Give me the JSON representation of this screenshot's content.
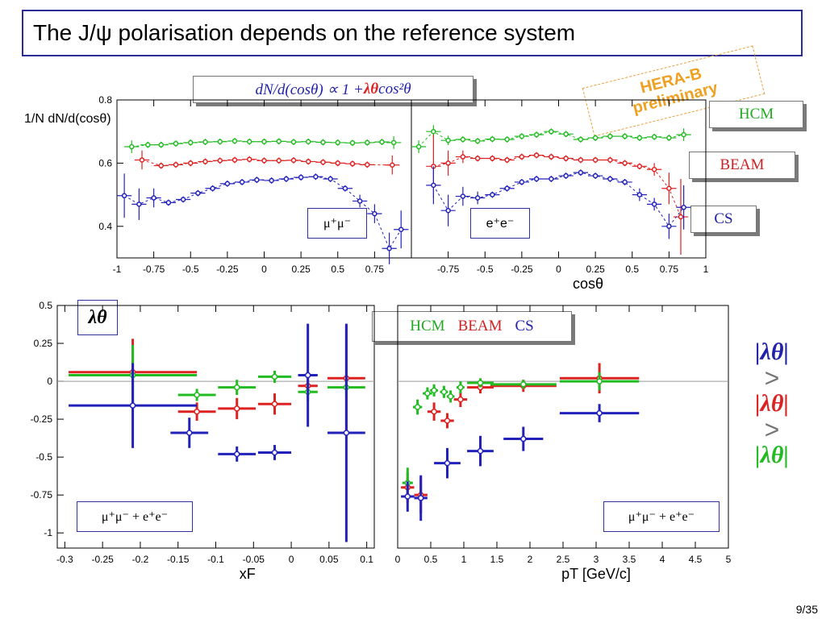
{
  "slide": {
    "title": "The J/ψ polarisation depends on the reference system",
    "page": "9/35"
  },
  "formula": {
    "lhs": "dN/d(cosθ) ∝ 1 + ",
    "lambda": "λθ",
    "rhs": " cos²θ"
  },
  "preliminary": [
    "HERA-B",
    "preliminary"
  ],
  "frames": {
    "hcm": "HCM",
    "beam": "BEAM",
    "cs": "CS"
  },
  "inequality": {
    "l1": "|λθ|",
    "gt": ">",
    "l2": "|λθ|",
    "l3": "|λθ|"
  },
  "colors": {
    "hcm": "#22bb22",
    "beam": "#dd2222",
    "cs": "#2222bb",
    "frame_border": "#2b2b9a",
    "preliminary": "#f0a020"
  },
  "chart_data": [
    {
      "type": "scatter",
      "id": "mumu-cos",
      "ylabel": "1/N dN/d(cosθ)",
      "xlabel": "",
      "label": "μ⁺μ⁻",
      "xlim": [
        -1,
        1
      ],
      "ylim": [
        0.3,
        0.8
      ],
      "xticks": [
        -1,
        -0.75,
        -0.5,
        -0.25,
        0,
        0.25,
        0.5,
        0.75
      ],
      "yticks": [
        0.4,
        0.6,
        0.8
      ],
      "series": [
        {
          "frame": "hcm",
          "x": [
            -0.9,
            -0.79,
            -0.7,
            -0.6,
            -0.5,
            -0.4,
            -0.3,
            -0.2,
            -0.1,
            0,
            0.1,
            0.2,
            0.3,
            0.4,
            0.5,
            0.6,
            0.7,
            0.8,
            0.88
          ],
          "y": [
            0.652,
            0.658,
            0.658,
            0.662,
            0.665,
            0.667,
            0.668,
            0.67,
            0.668,
            0.668,
            0.669,
            0.667,
            0.668,
            0.666,
            0.665,
            0.664,
            0.665,
            0.667,
            0.665
          ],
          "yerr": [
            0.02,
            0.01,
            0.01,
            0.01,
            0.01,
            0.01,
            0.01,
            0.01,
            0.01,
            0.01,
            0.01,
            0.01,
            0.01,
            0.01,
            0.01,
            0.01,
            0.01,
            0.01,
            0.02
          ],
          "xerr": 0.05
        },
        {
          "frame": "beam",
          "x": [
            -0.83,
            -0.7,
            -0.6,
            -0.5,
            -0.4,
            -0.3,
            -0.2,
            -0.1,
            0,
            0.1,
            0.2,
            0.3,
            0.4,
            0.5,
            0.6,
            0.7,
            0.87
          ],
          "y": [
            0.61,
            0.592,
            0.595,
            0.6,
            0.605,
            0.608,
            0.61,
            0.612,
            0.608,
            0.608,
            0.609,
            0.605,
            0.603,
            0.6,
            0.598,
            0.595,
            0.594
          ],
          "yerr": [
            0.03,
            0.01,
            0.01,
            0.01,
            0.01,
            0.01,
            0.01,
            0.01,
            0.01,
            0.01,
            0.01,
            0.01,
            0.01,
            0.01,
            0.01,
            0.01,
            0.03
          ],
          "xerr": 0.05
        },
        {
          "frame": "cs",
          "x": [
            -0.95,
            -0.85,
            -0.75,
            -0.65,
            -0.55,
            -0.45,
            -0.35,
            -0.25,
            -0.15,
            -0.05,
            0.05,
            0.15,
            0.25,
            0.35,
            0.45,
            0.55,
            0.65,
            0.75,
            0.85,
            0.93
          ],
          "y": [
            0.497,
            0.47,
            0.49,
            0.475,
            0.485,
            0.505,
            0.52,
            0.535,
            0.54,
            0.547,
            0.545,
            0.55,
            0.555,
            0.557,
            0.55,
            0.52,
            0.48,
            0.44,
            0.33,
            0.39
          ],
          "yerr": [
            0.07,
            0.05,
            0.03,
            0.01,
            0.01,
            0.01,
            0.01,
            0.01,
            0.01,
            0.01,
            0.01,
            0.01,
            0.01,
            0.01,
            0.01,
            0.01,
            0.02,
            0.03,
            0.05,
            0.06
          ],
          "xerr": 0.05
        }
      ]
    },
    {
      "type": "scatter",
      "id": "ee-cos",
      "xlabel": "cosθ",
      "label": "e⁺e⁻",
      "xlim": [
        -1,
        1
      ],
      "ylim": [
        0.3,
        0.8
      ],
      "xticks": [
        -0.75,
        -0.5,
        -0.25,
        0,
        0.25,
        0.5,
        0.75,
        1
      ],
      "series": [
        {
          "frame": "hcm",
          "x": [
            -0.95,
            -0.85,
            -0.75,
            -0.65,
            -0.55,
            -0.45,
            -0.35,
            -0.25,
            -0.15,
            -0.05,
            0.05,
            0.15,
            0.25,
            0.35,
            0.45,
            0.55,
            0.65,
            0.75,
            0.85
          ],
          "y": [
            0.652,
            0.7,
            0.672,
            0.675,
            0.67,
            0.676,
            0.675,
            0.685,
            0.69,
            0.7,
            0.692,
            0.675,
            0.68,
            0.685,
            0.685,
            0.68,
            0.683,
            0.68,
            0.69
          ],
          "yerr": [
            0.02,
            0.02,
            0.015,
            0.01,
            0.01,
            0.01,
            0.01,
            0.01,
            0.01,
            0.01,
            0.01,
            0.01,
            0.01,
            0.01,
            0.01,
            0.01,
            0.01,
            0.01,
            0.02
          ],
          "xerr": 0.05
        },
        {
          "frame": "beam",
          "x": [
            -0.85,
            -0.75,
            -0.65,
            -0.55,
            -0.45,
            -0.35,
            -0.25,
            -0.15,
            -0.05,
            0.05,
            0.15,
            0.25,
            0.35,
            0.45,
            0.55,
            0.65,
            0.75,
            0.83
          ],
          "y": [
            0.59,
            0.6,
            0.62,
            0.615,
            0.615,
            0.61,
            0.62,
            0.625,
            0.62,
            0.615,
            0.61,
            0.61,
            0.61,
            0.6,
            0.59,
            0.58,
            0.52,
            0.43
          ],
          "yerr": [
            0.1,
            0.04,
            0.02,
            0.01,
            0.01,
            0.01,
            0.01,
            0.01,
            0.01,
            0.01,
            0.01,
            0.01,
            0.01,
            0.01,
            0.01,
            0.02,
            0.05,
            0.12
          ],
          "xerr": 0.05
        },
        {
          "frame": "cs",
          "x": [
            -0.85,
            -0.75,
            -0.65,
            -0.55,
            -0.45,
            -0.35,
            -0.25,
            -0.15,
            -0.05,
            0.05,
            0.15,
            0.25,
            0.35,
            0.45,
            0.55,
            0.65,
            0.75,
            0.85
          ],
          "y": [
            0.53,
            0.45,
            0.495,
            0.49,
            0.5,
            0.52,
            0.54,
            0.55,
            0.55,
            0.56,
            0.57,
            0.56,
            0.55,
            0.54,
            0.5,
            0.47,
            0.4,
            0.46
          ],
          "yerr": [
            0.06,
            0.05,
            0.03,
            0.02,
            0.01,
            0.01,
            0.01,
            0.01,
            0.01,
            0.01,
            0.01,
            0.01,
            0.01,
            0.01,
            0.02,
            0.02,
            0.04,
            0.07
          ],
          "xerr": 0.05
        }
      ]
    },
    {
      "type": "scatter",
      "id": "lambda-xf",
      "ylabel": "λθ",
      "xlabel": "xF",
      "label": "μ⁺μ⁻ + e⁺e⁻",
      "xlim": [
        -0.31,
        0.11
      ],
      "ylim": [
        -1.1,
        0.5
      ],
      "xticks": [
        -0.3,
        -0.25,
        -0.2,
        -0.15,
        -0.1,
        -0.05,
        0,
        0.05,
        0.1
      ],
      "yticks": [
        0.5,
        0.25,
        0,
        -0.25,
        -0.5,
        -0.75,
        -1
      ],
      "series": [
        {
          "frame": "beam",
          "x": [
            -0.21,
            -0.125,
            -0.072,
            -0.022,
            0.022,
            0.073
          ],
          "y": [
            0.06,
            -0.2,
            -0.18,
            -0.15,
            -0.03,
            0.02
          ],
          "yerr": [
            0.22,
            0.06,
            0.07,
            0.07,
            0.05,
            0.35
          ],
          "xerr": [
            0.085,
            0.025,
            0.025,
            0.022,
            0.013,
            0.025
          ]
        },
        {
          "frame": "hcm",
          "x": [
            -0.21,
            -0.125,
            -0.072,
            -0.022,
            0.022,
            0.073
          ],
          "y": [
            0.04,
            -0.09,
            -0.04,
            0.03,
            -0.07,
            -0.04
          ],
          "yerr": [
            0.2,
            0.04,
            0.05,
            0.04,
            0.06,
            0.06
          ],
          "xerr": [
            0.085,
            0.025,
            0.025,
            0.022,
            0.013,
            0.025
          ]
        },
        {
          "frame": "cs",
          "x": [
            -0.21,
            -0.135,
            -0.072,
            -0.022,
            0.022,
            0.073
          ],
          "y": [
            -0.16,
            -0.34,
            -0.48,
            -0.47,
            0.04,
            -0.34
          ],
          "yerr": [
            0.28,
            0.1,
            0.05,
            0.05,
            0.34,
            0.72
          ],
          "xerr": [
            0.085,
            0.025,
            0.025,
            0.022,
            0.013,
            0.025
          ]
        }
      ]
    },
    {
      "type": "scatter",
      "id": "lambda-pt",
      "xlabel": "pT [GeV/c]",
      "label": "μ⁺μ⁻ + e⁺e⁻",
      "xlim": [
        0,
        5
      ],
      "ylim": [
        -1.1,
        0.5
      ],
      "xticks": [
        0,
        0.5,
        1,
        1.5,
        2,
        2.5,
        3,
        3.5,
        4,
        4.5,
        5
      ],
      "series": [
        {
          "frame": "beam",
          "x": [
            0.15,
            0.35,
            0.55,
            0.75,
            0.95,
            1.25,
            1.9,
            3.05
          ],
          "y": [
            -0.7,
            -0.75,
            -0.2,
            -0.26,
            -0.12,
            -0.04,
            -0.03,
            0.02
          ],
          "yerr": [
            0.1,
            0.12,
            0.06,
            0.05,
            0.05,
            0.04,
            0.04,
            0.1
          ],
          "xerr": [
            0.1,
            0.1,
            0.1,
            0.1,
            0.1,
            0.2,
            0.5,
            0.6
          ]
        },
        {
          "frame": "hcm",
          "x": [
            0.15,
            0.3,
            0.45,
            0.55,
            0.7,
            0.8,
            0.95,
            1.25,
            1.9,
            3.05
          ],
          "y": [
            -0.67,
            -0.17,
            -0.08,
            -0.06,
            -0.07,
            -0.1,
            -0.04,
            -0.01,
            -0.02,
            0.0
          ],
          "yerr": [
            0.1,
            0.05,
            0.04,
            0.04,
            0.04,
            0.04,
            0.04,
            0.03,
            0.03,
            0.06
          ],
          "xerr": [
            0.08,
            0.07,
            0.07,
            0.06,
            0.06,
            0.06,
            0.06,
            0.2,
            0.5,
            0.6
          ]
        },
        {
          "frame": "cs",
          "x": [
            0.15,
            0.35,
            0.75,
            1.25,
            1.9,
            3.05
          ],
          "y": [
            -0.76,
            -0.77,
            -0.54,
            -0.46,
            -0.38,
            -0.21
          ],
          "yerr": [
            0.1,
            0.15,
            0.1,
            0.1,
            0.08,
            0.06
          ],
          "xerr": [
            0.1,
            0.1,
            0.2,
            0.2,
            0.3,
            0.6
          ]
        }
      ]
    }
  ]
}
